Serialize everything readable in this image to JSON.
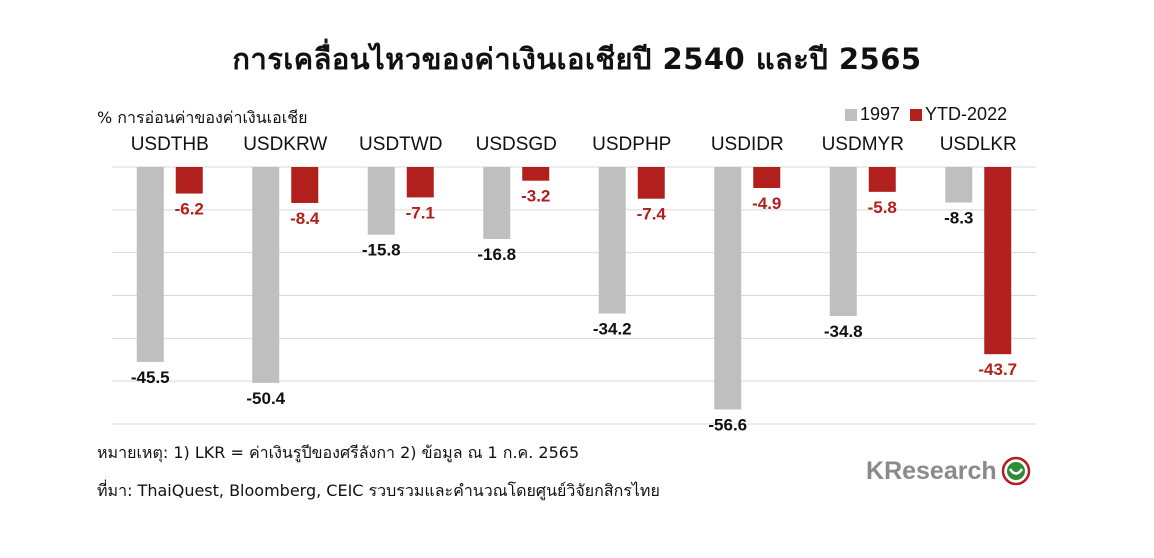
{
  "title": "การเคลื่อนไหวของค่าเงินเอเชียปี 2540 และปี 2565",
  "colors": {
    "series_1997": "#bfbfbf",
    "series_2022": "#b1201c",
    "label_2022": "#b1201c",
    "label_1997": "#111111"
  },
  "chart_data": {
    "type": "bar",
    "title": "การเคลื่อนไหวของค่าเงินเอเชียปี 2540 และปี 2565",
    "ylabel": "% การอ่อนค่าของค่าเงินเอเชีย",
    "xlabel": "",
    "categories": [
      "USDTHB",
      "USDKRW",
      "USDTWD",
      "USDSGD",
      "USDPHP",
      "USDIDR",
      "USDMYR",
      "USDLKR"
    ],
    "series": [
      {
        "name": "1997",
        "values": [
          -45.5,
          -50.4,
          -15.8,
          -16.8,
          -34.2,
          -56.6,
          -34.8,
          -8.3
        ]
      },
      {
        "name": "YTD-2022",
        "values": [
          -6.2,
          -8.4,
          -7.1,
          -3.2,
          -7.4,
          -4.9,
          -5.8,
          -43.7
        ]
      }
    ],
    "ylim": [
      -60,
      0
    ],
    "grid": true,
    "legend_position": "top-right",
    "category_axis_position": "top"
  },
  "notes": {
    "remark": "หมายเหตุ: 1) LKR = ค่าเงินรูปีของศรีลังกา   2) ข้อมูล ณ 1 ก.ค. 2565",
    "source": "ที่มา: ThaiQuest, Bloomberg, CEIC รวบรวมและคำนวณโดยศูนย์วิจัยกสิกรไทย"
  },
  "logo": {
    "k": "K",
    "text": "Research"
  }
}
